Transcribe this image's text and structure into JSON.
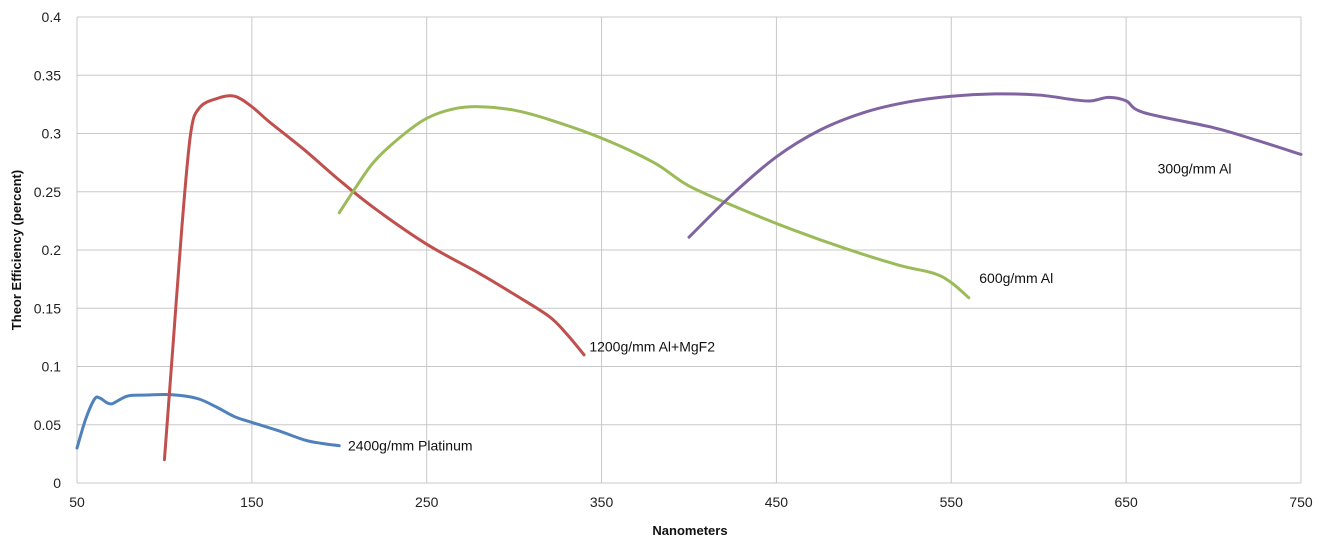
{
  "chart_data": {
    "type": "line",
    "title": "",
    "xlabel": "Nanometers",
    "ylabel": "Theor Efficiency (percent)",
    "xlim": [
      50,
      750
    ],
    "ylim": [
      0,
      0.4
    ],
    "x_ticks": [
      50,
      150,
      250,
      350,
      450,
      550,
      650,
      750
    ],
    "y_ticks": [
      0,
      0.05,
      0.1,
      0.15,
      0.2,
      0.25,
      0.3,
      0.35,
      0.4
    ],
    "y_tick_labels": [
      "0",
      "0.05",
      "0.1",
      "0.15",
      "0.2",
      "0.25",
      "0.3",
      "0.35",
      "0.4"
    ],
    "grid": true,
    "legend": "none",
    "series": [
      {
        "name": "2400g/mm Platinum",
        "color": "#4F81BD",
        "label_at": [
          205,
          0.032
        ],
        "points": [
          [
            50,
            0.03
          ],
          [
            55,
            0.055
          ],
          [
            60,
            0.072
          ],
          [
            63,
            0.073
          ],
          [
            67,
            0.069
          ],
          [
            70,
            0.068
          ],
          [
            75,
            0.072
          ],
          [
            80,
            0.075
          ],
          [
            90,
            0.0755
          ],
          [
            100,
            0.076
          ],
          [
            110,
            0.075
          ],
          [
            120,
            0.072
          ],
          [
            130,
            0.065
          ],
          [
            140,
            0.057
          ],
          [
            150,
            0.052
          ],
          [
            165,
            0.045
          ],
          [
            180,
            0.037
          ],
          [
            190,
            0.034
          ],
          [
            200,
            0.032
          ]
        ]
      },
      {
        "name": "1200g/mm Al+MgF2",
        "color": "#C0504D",
        "label_at": [
          343,
          0.117
        ],
        "points": [
          [
            100,
            0.02
          ],
          [
            105,
            0.12
          ],
          [
            110,
            0.22
          ],
          [
            115,
            0.3
          ],
          [
            120,
            0.322
          ],
          [
            130,
            0.33
          ],
          [
            140,
            0.332
          ],
          [
            150,
            0.323
          ],
          [
            160,
            0.31
          ],
          [
            180,
            0.286
          ],
          [
            200,
            0.26
          ],
          [
            220,
            0.236
          ],
          [
            250,
            0.205
          ],
          [
            280,
            0.18
          ],
          [
            300,
            0.162
          ],
          [
            320,
            0.143
          ],
          [
            330,
            0.128
          ],
          [
            340,
            0.11
          ]
        ]
      },
      {
        "name": "600g/mm Al",
        "color": "#9BBB59",
        "label_at": [
          566,
          0.176
        ],
        "points": [
          [
            200,
            0.232
          ],
          [
            210,
            0.255
          ],
          [
            220,
            0.276
          ],
          [
            235,
            0.297
          ],
          [
            250,
            0.313
          ],
          [
            265,
            0.321
          ],
          [
            280,
            0.323
          ],
          [
            300,
            0.32
          ],
          [
            320,
            0.312
          ],
          [
            350,
            0.296
          ],
          [
            380,
            0.275
          ],
          [
            400,
            0.255
          ],
          [
            430,
            0.235
          ],
          [
            460,
            0.217
          ],
          [
            490,
            0.201
          ],
          [
            520,
            0.187
          ],
          [
            540,
            0.18
          ],
          [
            550,
            0.172
          ],
          [
            560,
            0.159
          ]
        ]
      },
      {
        "name": "300g/mm Al",
        "color": "#8064A2",
        "label_at": [
          668,
          0.27
        ],
        "points": [
          [
            400,
            0.211
          ],
          [
            425,
            0.248
          ],
          [
            450,
            0.28
          ],
          [
            475,
            0.303
          ],
          [
            500,
            0.318
          ],
          [
            525,
            0.327
          ],
          [
            550,
            0.332
          ],
          [
            575,
            0.334
          ],
          [
            600,
            0.333
          ],
          [
            620,
            0.329
          ],
          [
            630,
            0.328
          ],
          [
            640,
            0.331
          ],
          [
            650,
            0.328
          ],
          [
            660,
            0.318
          ],
          [
            700,
            0.305
          ],
          [
            725,
            0.294
          ],
          [
            750,
            0.282
          ]
        ]
      }
    ]
  }
}
